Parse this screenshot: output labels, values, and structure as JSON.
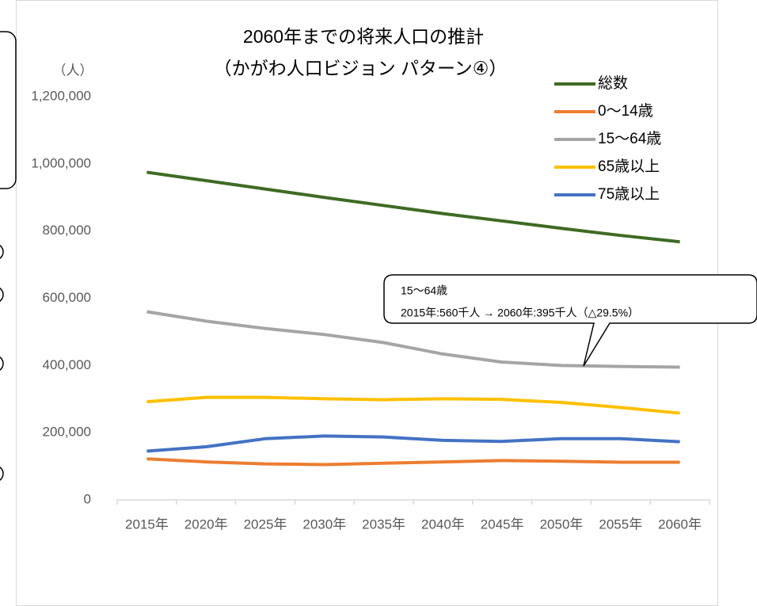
{
  "chart_data": {
    "type": "line",
    "title": "2060年までの将来人口の推計",
    "subtitle": "（かがわ人口ビジョン パターン④）",
    "y_label": "（人）",
    "categories": [
      "2015年",
      "2020年",
      "2025年",
      "2030年",
      "2035年",
      "2040年",
      "2045年",
      "2050年",
      "2055年",
      "2060年"
    ],
    "series": [
      {
        "name": "総数",
        "color": "#3e6b24",
        "values": [
          975000,
          950000,
          925000,
          900000,
          876000,
          852000,
          830000,
          808000,
          787000,
          768000
        ]
      },
      {
        "name": "0〜14歳",
        "color": "#ed7d31",
        "values": [
          122000,
          113000,
          107000,
          105000,
          109000,
          113000,
          117000,
          115000,
          112000,
          112000
        ]
      },
      {
        "name": "15〜64歳",
        "color": "#a5a5a5",
        "values": [
          560000,
          532000,
          510000,
          492000,
          468000,
          434000,
          410000,
          400000,
          397000,
          395000
        ]
      },
      {
        "name": "65歳以上",
        "color": "#ffc000",
        "values": [
          292000,
          305000,
          305000,
          301000,
          298000,
          301000,
          299000,
          290000,
          275000,
          258000
        ]
      },
      {
        "name": "75歳以上",
        "color": "#4472c4",
        "values": [
          145000,
          158000,
          182000,
          190000,
          187000,
          177000,
          174000,
          182000,
          182000,
          173000
        ]
      }
    ],
    "ylim": [
      0,
      1200000
    ],
    "yticks": [
      0,
      {
        "value": 200000,
        "label": "200,000"
      },
      {
        "value": 400000,
        "label": "400,000"
      },
      {
        "value": 600000,
        "label": "600,000"
      },
      {
        "value": 800000,
        "label": "800,000"
      },
      {
        "value": 1000000,
        "label": "1,000,000"
      },
      {
        "value": 1200000,
        "label": "1,200,000"
      }
    ],
    "grid": false,
    "legend": "upper right",
    "annotation": [
      "15〜64歳",
      "2015年:560千人 → 2060年:395千人（△29.5%）"
    ]
  }
}
